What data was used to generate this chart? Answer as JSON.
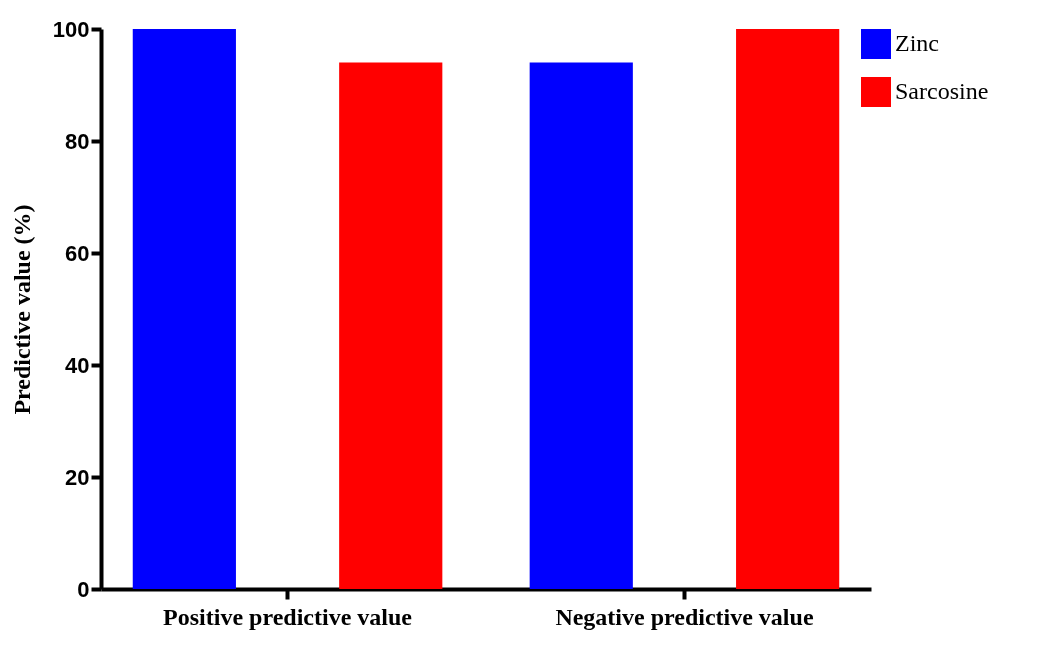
{
  "chart_data": {
    "type": "bar",
    "ylabel": "Predictive value (%)",
    "categories": [
      "Positive predictive value",
      "Negative predictive value"
    ],
    "series": [
      {
        "name": "Zinc",
        "color": "#0000ff",
        "values": [
          100,
          94
        ]
      },
      {
        "name": "Sarcosine",
        "color": "#ff0000",
        "values": [
          94,
          100
        ]
      }
    ],
    "ylim": [
      0,
      100
    ],
    "yticks": [
      0,
      20,
      40,
      60,
      80,
      100
    ],
    "grid": false,
    "legend": "right"
  }
}
